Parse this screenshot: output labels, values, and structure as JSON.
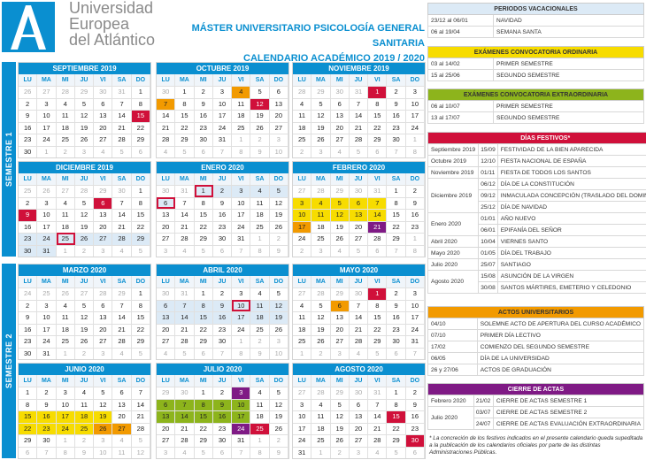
{
  "header": {
    "logo_text": "A",
    "university": [
      "Universidad",
      "Europea",
      "del Atlántico"
    ],
    "title": "MÁSTER UNIVERSITARIO PSICOLOGÍA GENERAL SANITARIA",
    "subtitle": "CALENDARIO ACADÉMICO 2019 / 2020"
  },
  "colors": {
    "brand": "#0a8fd0",
    "festivo": "#d0103a",
    "vacaciones": "#dceaf6",
    "ordinaria": "#f7dc00",
    "extraordinaria": "#8db41c",
    "actos": "#f29a00",
    "actas": "#7f1a85"
  },
  "semesters": [
    "SEMESTRE 1",
    "SEMESTRE 2"
  ],
  "day_labels": [
    "LU",
    "MA",
    "MI",
    "JU",
    "VI",
    "SA",
    "DO"
  ],
  "months": [
    {
      "name": "SEPTIEMBRE 2019",
      "weeks": [
        [
          26,
          27,
          28,
          29,
          30,
          31,
          1
        ],
        [
          2,
          3,
          4,
          5,
          6,
          7,
          8
        ],
        [
          9,
          10,
          11,
          12,
          13,
          14,
          15
        ],
        [
          16,
          17,
          18,
          19,
          20,
          21,
          22
        ],
        [
          23,
          24,
          25,
          26,
          27,
          28,
          29
        ],
        [
          30,
          1,
          2,
          3,
          4,
          5,
          6
        ]
      ],
      "marks": {
        "15": "festivo"
      }
    },
    {
      "name": "OCTUBRE 2019",
      "weeks": [
        [
          30,
          1,
          2,
          3,
          4,
          5,
          6
        ],
        [
          7,
          8,
          9,
          10,
          11,
          12,
          13
        ],
        [
          14,
          15,
          16,
          17,
          18,
          19,
          20
        ],
        [
          21,
          22,
          23,
          24,
          25,
          26,
          27
        ],
        [
          28,
          29,
          30,
          31,
          1,
          2,
          3
        ],
        [
          4,
          5,
          6,
          7,
          8,
          9,
          10
        ]
      ],
      "marks": {
        "4": "acto",
        "7": "acto",
        "12": "festivo"
      }
    },
    {
      "name": "NOVIEMBRE 2019",
      "weeks": [
        [
          28,
          29,
          30,
          31,
          1,
          2,
          3
        ],
        [
          4,
          5,
          6,
          7,
          8,
          9,
          10
        ],
        [
          11,
          12,
          13,
          14,
          15,
          16,
          17
        ],
        [
          18,
          19,
          20,
          21,
          22,
          23,
          24
        ],
        [
          25,
          26,
          27,
          28,
          29,
          30,
          1
        ],
        [
          2,
          3,
          4,
          5,
          6,
          7,
          8
        ]
      ],
      "marks": {
        "1": "festivo"
      }
    },
    {
      "name": "DICIEMBRE 2019",
      "weeks": [
        [
          25,
          26,
          27,
          28,
          29,
          30,
          1
        ],
        [
          2,
          3,
          4,
          5,
          6,
          7,
          8
        ],
        [
          9,
          10,
          11,
          12,
          13,
          14,
          15
        ],
        [
          16,
          17,
          18,
          19,
          20,
          21,
          22
        ],
        [
          23,
          24,
          25,
          26,
          27,
          28,
          29
        ],
        [
          30,
          31,
          1,
          2,
          3,
          4,
          5
        ]
      ],
      "marks": {
        "6": "festivo",
        "9": "festivo",
        "23": "vac",
        "24": "vac",
        "25": "fvac",
        "26": "vac",
        "27": "vac",
        "28": "vac",
        "29": "vac",
        "30": "vac",
        "31": "vac"
      }
    },
    {
      "name": "ENERO 2020",
      "weeks": [
        [
          30,
          31,
          1,
          2,
          3,
          4,
          5
        ],
        [
          6,
          7,
          8,
          9,
          10,
          11,
          12
        ],
        [
          13,
          14,
          15,
          16,
          17,
          18,
          19
        ],
        [
          20,
          21,
          22,
          23,
          24,
          25,
          26
        ],
        [
          27,
          28,
          29,
          30,
          31,
          1,
          2
        ],
        [
          3,
          4,
          5,
          6,
          7,
          8,
          9
        ]
      ],
      "marks": {
        "1": "fvac",
        "2": "vac",
        "3": "vac",
        "4": "vac",
        "5": "vac",
        "6": "fvac"
      }
    },
    {
      "name": "FEBRERO 2020",
      "weeks": [
        [
          27,
          28,
          29,
          30,
          31,
          1,
          2
        ],
        [
          3,
          4,
          5,
          6,
          7,
          8,
          9
        ],
        [
          10,
          11,
          12,
          13,
          14,
          15,
          16
        ],
        [
          17,
          18,
          19,
          20,
          21,
          22,
          23
        ],
        [
          24,
          25,
          26,
          27,
          28,
          29,
          1
        ],
        [
          2,
          3,
          4,
          5,
          6,
          7,
          8
        ]
      ],
      "marks": {
        "3": "ord",
        "4": "ord",
        "5": "ord",
        "6": "ord",
        "7": "ord",
        "10": "ord",
        "11": "ord",
        "12": "ord",
        "13": "ord",
        "14": "ord",
        "17": "acto",
        "21": "actas"
      }
    },
    {
      "name": "MARZO 2020",
      "weeks": [
        [
          24,
          25,
          26,
          27,
          28,
          29,
          1
        ],
        [
          2,
          3,
          4,
          5,
          6,
          7,
          8
        ],
        [
          9,
          10,
          11,
          12,
          13,
          14,
          15
        ],
        [
          16,
          17,
          18,
          19,
          20,
          21,
          22
        ],
        [
          23,
          24,
          25,
          26,
          27,
          28,
          29
        ],
        [
          30,
          31,
          1,
          2,
          3,
          4,
          5
        ]
      ],
      "marks": {}
    },
    {
      "name": "ABRIL 2020",
      "weeks": [
        [
          30,
          31,
          1,
          2,
          3,
          4,
          5
        ],
        [
          6,
          7,
          8,
          9,
          10,
          11,
          12
        ],
        [
          13,
          14,
          15,
          16,
          17,
          18,
          19
        ],
        [
          20,
          21,
          22,
          23,
          24,
          25,
          26
        ],
        [
          27,
          28,
          29,
          30,
          1,
          2,
          3
        ],
        [
          4,
          5,
          6,
          7,
          8,
          9,
          10
        ]
      ],
      "marks": {
        "6": "vac",
        "7": "vac",
        "8": "vac",
        "9": "vac",
        "10": "fvac",
        "11": "vac",
        "12": "vac",
        "13": "vac",
        "14": "vac",
        "15": "vac",
        "16": "vac",
        "17": "vac",
        "18": "vac",
        "19": "vac"
      }
    },
    {
      "name": "MAYO 2020",
      "weeks": [
        [
          27,
          28,
          29,
          30,
          1,
          2,
          3
        ],
        [
          4,
          5,
          6,
          7,
          8,
          9,
          10
        ],
        [
          11,
          12,
          13,
          14,
          15,
          16,
          17
        ],
        [
          18,
          19,
          20,
          21,
          22,
          23,
          24
        ],
        [
          25,
          26,
          27,
          28,
          29,
          30,
          31
        ],
        [
          1,
          2,
          3,
          4,
          5,
          6,
          7
        ]
      ],
      "marks": {
        "1": "festivo",
        "6": "acto"
      }
    },
    {
      "name": "JUNIO 2020",
      "weeks": [
        [
          1,
          2,
          3,
          4,
          5,
          6,
          7
        ],
        [
          8,
          9,
          10,
          11,
          12,
          13,
          14
        ],
        [
          15,
          16,
          17,
          18,
          19,
          20,
          21
        ],
        [
          22,
          23,
          24,
          25,
          26,
          27,
          28
        ],
        [
          29,
          30,
          1,
          2,
          3,
          4,
          5
        ],
        [
          6,
          7,
          8,
          9,
          10,
          11,
          12
        ]
      ],
      "marks": {
        "15": "ord",
        "16": "ord",
        "17": "ord",
        "18": "ord",
        "19": "ord",
        "22": "ord",
        "23": "ord",
        "24": "ord",
        "25": "ord",
        "26": "acto",
        "27": "acto"
      }
    },
    {
      "name": "JULIO 2020",
      "weeks": [
        [
          29,
          30,
          1,
          2,
          3,
          4,
          5
        ],
        [
          6,
          7,
          8,
          9,
          10,
          11,
          12
        ],
        [
          13,
          14,
          15,
          16,
          17,
          18,
          19
        ],
        [
          20,
          21,
          22,
          23,
          24,
          25,
          26
        ],
        [
          27,
          28,
          29,
          30,
          31,
          1,
          2
        ],
        [
          3,
          4,
          5,
          6,
          7,
          8,
          9
        ]
      ],
      "marks": {
        "3": "actas",
        "6": "ext",
        "7": "ext",
        "8": "ext",
        "9": "ext",
        "10": "ext",
        "13": "ext",
        "14": "ext",
        "15": "ext",
        "16": "ext",
        "17": "ext",
        "24": "actas",
        "25": "festivo"
      }
    },
    {
      "name": "AGOSTO 2020",
      "weeks": [
        [
          27,
          28,
          29,
          30,
          31,
          1,
          2
        ],
        [
          3,
          4,
          5,
          6,
          7,
          8,
          9
        ],
        [
          10,
          11,
          12,
          13,
          14,
          15,
          16
        ],
        [
          17,
          18,
          19,
          20,
          21,
          22,
          23
        ],
        [
          24,
          25,
          26,
          27,
          28,
          29,
          30
        ],
        [
          31,
          1,
          2,
          3,
          4,
          5,
          6
        ]
      ],
      "marks": {
        "15": "festivo",
        "30": "festivo"
      }
    }
  ],
  "vacaciones": {
    "title": "PERIODOS VACACIONALES",
    "rows": [
      [
        "23/12 al 06/01",
        "NAVIDAD"
      ],
      [
        "06 al 19/04",
        "SEMANA SANTA"
      ]
    ]
  },
  "ordinaria": {
    "title": "EXÁMENES CONVOCATORIA ORDINARIA",
    "rows": [
      [
        "03 al 14/02",
        "PRIMER SEMESTRE"
      ],
      [
        "15 al 25/06",
        "SEGUNDO SEMESTRE"
      ]
    ]
  },
  "extraordinaria": {
    "title": "EXÁMENES CONVOCATORIA EXTRAORDINARIA",
    "rows": [
      [
        "06 al 10/07",
        "PRIMER SEMESTRE"
      ],
      [
        "13 al 17/07",
        "SEGUNDO SEMESTRE"
      ]
    ]
  },
  "festivos": {
    "title": "DÍAS FESTIVOS*",
    "groups": [
      {
        "month": "Septiembre 2019",
        "items": [
          [
            "15/09",
            "FESTIVIDAD DE LA BIEN APARECIDA"
          ]
        ]
      },
      {
        "month": "Octubre 2019",
        "items": [
          [
            "12/10",
            "FIESTA NACIONAL DE ESPAÑA"
          ]
        ]
      },
      {
        "month": "Noviembre 2019",
        "items": [
          [
            "01/11",
            "FIESTA DE TODOS LOS SANTOS"
          ]
        ]
      },
      {
        "month": "Diciembre 2019",
        "items": [
          [
            "06/12",
            "DÍA DE LA CONSTITUCIÓN"
          ],
          [
            "09/12",
            "INMACULADA CONCEPCIÓN (TRASLADO DEL DOMINGO)"
          ],
          [
            "25/12",
            "DÍA DE NAVIDAD"
          ]
        ]
      },
      {
        "month": "Enero 2020",
        "items": [
          [
            "01/01",
            "AÑO NUEVO"
          ],
          [
            "06/01",
            "EPIFANÍA DEL SEÑOR"
          ]
        ]
      },
      {
        "month": "Abril 2020",
        "items": [
          [
            "10/04",
            "VIERNES SANTO"
          ]
        ]
      },
      {
        "month": "Mayo 2020",
        "items": [
          [
            "01/05",
            "DÍA DEL TRABAJO"
          ]
        ]
      },
      {
        "month": "Julio 2020",
        "items": [
          [
            "25/07",
            "SANTIAGO"
          ]
        ]
      },
      {
        "month": "Agosto 2020",
        "items": [
          [
            "15/08",
            "ASUNCIÓN DE LA VIRGEN"
          ],
          [
            "30/08",
            "SANTOS MÁRTIRES, EMETERIO Y CELEDONIO"
          ]
        ]
      }
    ]
  },
  "actos": {
    "title": "ACTOS  UNIVERSITARIOS",
    "rows": [
      [
        "04/10",
        "SOLEMNE ACTO DE APERTURA DEL CURSO ACADÉMICO"
      ],
      [
        "07/10",
        "PRIMER DÍA LECTIVO"
      ],
      [
        "17/02",
        "COMIENZO DEL SEGUNDO SEMESTRE"
      ],
      [
        "06/05",
        "DÍA DE LA UNIVERSIDAD"
      ],
      [
        "26 y 27/06",
        "ACTOS DE GRADUACIÓN"
      ]
    ]
  },
  "actas": {
    "title": "CIERRE DE ACTAS",
    "groups": [
      {
        "month": "Febrero 2020",
        "items": [
          [
            "21/02",
            "CIERRE DE ACTAS SEMESTRE 1"
          ]
        ]
      },
      {
        "month": "Julio 2020",
        "items": [
          [
            "03/07",
            "CIERRE DE ACTAS SEMESTRE 2"
          ],
          [
            "24/07",
            "CIERRE DE ACTAS EVALUACIÓN EXTRAORDINARIA"
          ]
        ]
      }
    ]
  },
  "footnote": "* La concreción de los festivos indicados en el presente calendario queda supeditada a la publicación de los calendarios oficiales por parte de las distintas Administraciones Públicas."
}
